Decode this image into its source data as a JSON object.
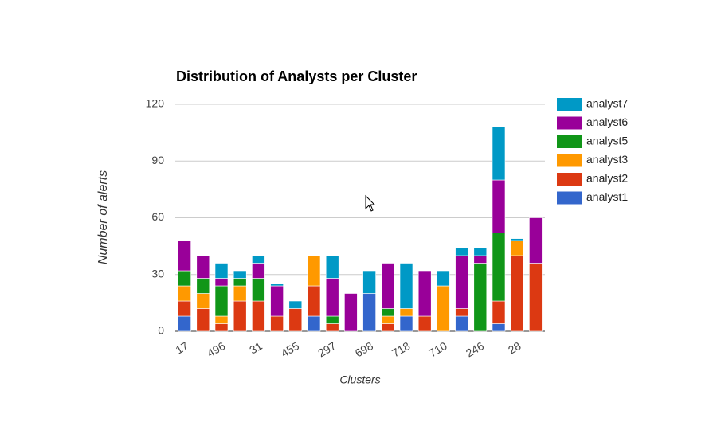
{
  "chart_data": {
    "type": "stacked-bar",
    "title": "Distribution of Analysts per Cluster",
    "x_label": "Clusters",
    "y_label": "Number of alerts",
    "categories": [
      "17",
      null,
      "496",
      null,
      "31",
      null,
      "455",
      null,
      "297",
      null,
      "698",
      null,
      "718",
      null,
      "710",
      null,
      "246",
      null,
      "28",
      null
    ],
    "ylim": [
      0,
      120
    ],
    "yticks": [
      0,
      30,
      60,
      90,
      120
    ],
    "grid": true,
    "legend": "right",
    "series": [
      {
        "name": "analyst1",
        "color": "#3366cc",
        "values": [
          8,
          0,
          0,
          0,
          0,
          0,
          0,
          8,
          0,
          0,
          20,
          0,
          8,
          0,
          0,
          8,
          0,
          4,
          0,
          0
        ]
      },
      {
        "name": "analyst2",
        "color": "#dc3912",
        "values": [
          8,
          12,
          4,
          16,
          16,
          8,
          12,
          16,
          4,
          0,
          0,
          4,
          0,
          8,
          0,
          4,
          0,
          12,
          40,
          36
        ]
      },
      {
        "name": "analyst3",
        "color": "#ff9900",
        "values": [
          8,
          8,
          4,
          8,
          0,
          0,
          0,
          16,
          0,
          0,
          0,
          4,
          4,
          0,
          24,
          0,
          0,
          0,
          8,
          0
        ]
      },
      {
        "name": "analyst5",
        "color": "#109618",
        "values": [
          8,
          8,
          16,
          4,
          12,
          0,
          0,
          0,
          4,
          0,
          0,
          4,
          0,
          0,
          0,
          0,
          36,
          36,
          0,
          0
        ]
      },
      {
        "name": "analyst6",
        "color": "#990099",
        "values": [
          16,
          12,
          4,
          0,
          8,
          16,
          0,
          0,
          20,
          20,
          0,
          24,
          0,
          24,
          0,
          28,
          4,
          28,
          0,
          24
        ]
      },
      {
        "name": "analyst7",
        "color": "#0099c6",
        "values": [
          0,
          0,
          8,
          4,
          4,
          1,
          4,
          0,
          12,
          0,
          12,
          0,
          24,
          0,
          8,
          4,
          4,
          28,
          1,
          0
        ]
      }
    ]
  }
}
